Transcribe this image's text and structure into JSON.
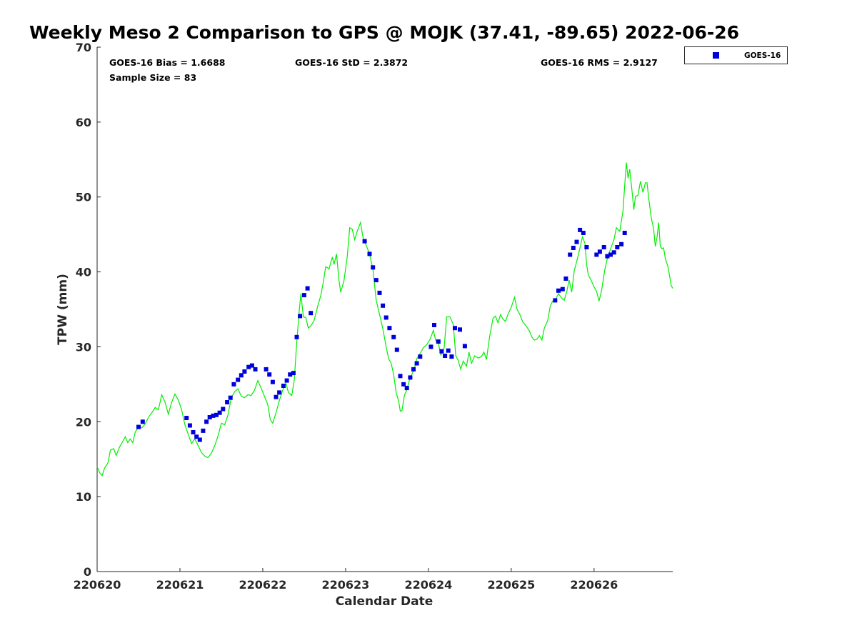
{
  "chart_data": {
    "type": "scatter",
    "title": "Weekly Meso 2 Comparison to GPS @ MOJK (37.41, -89.65) 2022-06-26",
    "xlabel": "Calendar Date",
    "ylabel": "TPW (mm)",
    "xlim": [
      0,
      6.95
    ],
    "ylim": [
      0,
      70
    ],
    "x_units": "days since 220620",
    "x_ticks": [
      0,
      1,
      2,
      3,
      4,
      5,
      6
    ],
    "x_tick_labels": [
      "220620",
      "220621",
      "220622",
      "220623",
      "220624",
      "220625",
      "220626"
    ],
    "y_ticks": [
      0,
      10,
      20,
      30,
      40,
      50,
      60,
      70
    ],
    "y_tick_labels": [
      "0",
      "10",
      "20",
      "30",
      "40",
      "50",
      "60",
      "70"
    ],
    "grid": false,
    "legend_position": "outside top-right",
    "stats": {
      "bias": "GOES-16 Bias = 1.6688",
      "std": "GOES-16 StD = 2.3872",
      "rms": "GOES-16 RMS = 2.9127",
      "sample": "Sample Size = 83"
    },
    "series": [
      {
        "name": "GOES-16",
        "kind": "scatter",
        "marker": "square",
        "color": "#0000dd",
        "points": [
          [
            0.5,
            19.3
          ],
          [
            0.55,
            20.0
          ],
          [
            1.08,
            20.5
          ],
          [
            1.12,
            19.5
          ],
          [
            1.16,
            18.6
          ],
          [
            1.2,
            18.0
          ],
          [
            1.24,
            17.6
          ],
          [
            1.28,
            18.8
          ],
          [
            1.32,
            20.0
          ],
          [
            1.36,
            20.6
          ],
          [
            1.4,
            20.8
          ],
          [
            1.44,
            20.9
          ],
          [
            1.48,
            21.2
          ],
          [
            1.52,
            21.7
          ],
          [
            1.57,
            22.6
          ],
          [
            1.61,
            23.2
          ],
          [
            1.65,
            25.0
          ],
          [
            1.7,
            25.6
          ],
          [
            1.74,
            26.2
          ],
          [
            1.78,
            26.7
          ],
          [
            1.83,
            27.3
          ],
          [
            1.87,
            27.5
          ],
          [
            1.91,
            27.0
          ],
          [
            2.04,
            27.0
          ],
          [
            2.08,
            26.3
          ],
          [
            2.12,
            25.3
          ],
          [
            2.16,
            23.3
          ],
          [
            2.2,
            23.9
          ],
          [
            2.25,
            24.8
          ],
          [
            2.29,
            25.5
          ],
          [
            2.33,
            26.3
          ],
          [
            2.37,
            26.5
          ],
          [
            2.41,
            31.3
          ],
          [
            2.45,
            34.1
          ],
          [
            2.5,
            36.9
          ],
          [
            2.54,
            37.8
          ],
          [
            2.58,
            34.5
          ],
          [
            3.23,
            44.1
          ],
          [
            3.29,
            42.4
          ],
          [
            3.33,
            40.6
          ],
          [
            3.37,
            38.9
          ],
          [
            3.41,
            37.2
          ],
          [
            3.45,
            35.5
          ],
          [
            3.49,
            33.9
          ],
          [
            3.53,
            32.5
          ],
          [
            3.58,
            31.3
          ],
          [
            3.62,
            29.6
          ],
          [
            3.66,
            26.1
          ],
          [
            3.7,
            25.0
          ],
          [
            3.74,
            24.5
          ],
          [
            3.78,
            25.9
          ],
          [
            3.82,
            27.0
          ],
          [
            3.86,
            27.8
          ],
          [
            3.9,
            28.7
          ],
          [
            4.03,
            30.0
          ],
          [
            4.07,
            32.9
          ],
          [
            4.12,
            30.7
          ],
          [
            4.16,
            29.4
          ],
          [
            4.2,
            28.8
          ],
          [
            4.24,
            29.5
          ],
          [
            4.28,
            28.7
          ],
          [
            4.32,
            32.5
          ],
          [
            4.38,
            32.3
          ],
          [
            4.44,
            30.1
          ],
          [
            5.53,
            36.2
          ],
          [
            5.57,
            37.5
          ],
          [
            5.62,
            37.7
          ],
          [
            5.66,
            39.1
          ],
          [
            5.71,
            42.3
          ],
          [
            5.75,
            43.2
          ],
          [
            5.79,
            44.0
          ],
          [
            5.83,
            45.6
          ],
          [
            5.87,
            45.2
          ],
          [
            5.91,
            43.3
          ],
          [
            6.03,
            42.3
          ],
          [
            6.07,
            42.7
          ],
          [
            6.12,
            43.3
          ],
          [
            6.16,
            42.1
          ],
          [
            6.2,
            42.3
          ],
          [
            6.24,
            42.6
          ],
          [
            6.28,
            43.3
          ],
          [
            6.33,
            43.7
          ],
          [
            6.37,
            45.2
          ]
        ]
      },
      {
        "name": "",
        "kind": "line",
        "color": "#00ee00",
        "points": [
          [
            0.0,
            14.0
          ],
          [
            0.03,
            13.2
          ],
          [
            0.06,
            12.8
          ],
          [
            0.09,
            13.8
          ],
          [
            0.13,
            14.5
          ],
          [
            0.16,
            16.2
          ],
          [
            0.2,
            16.4
          ],
          [
            0.23,
            15.5
          ],
          [
            0.27,
            16.6
          ],
          [
            0.31,
            17.4
          ],
          [
            0.34,
            18.0
          ],
          [
            0.37,
            17.2
          ],
          [
            0.4,
            17.7
          ],
          [
            0.43,
            17.2
          ],
          [
            0.46,
            18.6
          ],
          [
            0.5,
            19.3
          ],
          [
            0.54,
            19.2
          ],
          [
            0.58,
            19.7
          ],
          [
            0.62,
            20.6
          ],
          [
            0.66,
            21.2
          ],
          [
            0.7,
            21.9
          ],
          [
            0.74,
            21.6
          ],
          [
            0.78,
            23.6
          ],
          [
            0.82,
            22.6
          ],
          [
            0.86,
            21.0
          ],
          [
            0.9,
            22.6
          ],
          [
            0.94,
            23.7
          ],
          [
            0.98,
            22.9
          ],
          [
            1.02,
            21.6
          ],
          [
            1.06,
            19.6
          ],
          [
            1.1,
            18.3
          ],
          [
            1.14,
            17.1
          ],
          [
            1.18,
            17.7
          ],
          [
            1.22,
            16.8
          ],
          [
            1.26,
            15.9
          ],
          [
            1.3,
            15.4
          ],
          [
            1.34,
            15.2
          ],
          [
            1.38,
            15.8
          ],
          [
            1.42,
            16.8
          ],
          [
            1.46,
            18.1
          ],
          [
            1.5,
            19.8
          ],
          [
            1.54,
            19.6
          ],
          [
            1.58,
            20.9
          ],
          [
            1.62,
            23.2
          ],
          [
            1.66,
            24.0
          ],
          [
            1.7,
            24.4
          ],
          [
            1.74,
            23.4
          ],
          [
            1.78,
            23.2
          ],
          [
            1.82,
            23.6
          ],
          [
            1.86,
            23.5
          ],
          [
            1.9,
            24.2
          ],
          [
            1.94,
            25.5
          ],
          [
            1.98,
            24.5
          ],
          [
            2.02,
            23.4
          ],
          [
            2.06,
            22.3
          ],
          [
            2.09,
            20.3
          ],
          [
            2.12,
            19.8
          ],
          [
            2.16,
            21.2
          ],
          [
            2.2,
            22.8
          ],
          [
            2.24,
            24.2
          ],
          [
            2.28,
            25.1
          ],
          [
            2.31,
            23.9
          ],
          [
            2.35,
            23.5
          ],
          [
            2.38,
            25.5
          ],
          [
            2.41,
            30.6
          ],
          [
            2.44,
            34.8
          ],
          [
            2.46,
            37.1
          ],
          [
            2.49,
            34.0
          ],
          [
            2.52,
            33.9
          ],
          [
            2.55,
            32.5
          ],
          [
            2.58,
            32.8
          ],
          [
            2.62,
            33.5
          ],
          [
            2.66,
            35.3
          ],
          [
            2.7,
            36.8
          ],
          [
            2.73,
            38.6
          ],
          [
            2.76,
            40.7
          ],
          [
            2.8,
            40.4
          ],
          [
            2.84,
            42.0
          ],
          [
            2.86,
            41.0
          ],
          [
            2.89,
            42.4
          ],
          [
            2.92,
            38.9
          ],
          [
            2.94,
            37.3
          ],
          [
            2.98,
            38.8
          ],
          [
            3.02,
            42.0
          ],
          [
            3.05,
            45.9
          ],
          [
            3.08,
            45.7
          ],
          [
            3.11,
            44.3
          ],
          [
            3.14,
            45.4
          ],
          [
            3.18,
            46.6
          ],
          [
            3.21,
            44.6
          ],
          [
            3.25,
            43.5
          ],
          [
            3.29,
            42.4
          ],
          [
            3.33,
            40.3
          ],
          [
            3.37,
            36.2
          ],
          [
            3.41,
            34.3
          ],
          [
            3.45,
            32.4
          ],
          [
            3.49,
            30.0
          ],
          [
            3.52,
            28.4
          ],
          [
            3.55,
            27.8
          ],
          [
            3.58,
            26.3
          ],
          [
            3.61,
            23.9
          ],
          [
            3.64,
            22.8
          ],
          [
            3.66,
            21.4
          ],
          [
            3.68,
            21.5
          ],
          [
            3.71,
            23.5
          ],
          [
            3.74,
            24.3
          ],
          [
            3.77,
            25.5
          ],
          [
            3.8,
            26.3
          ],
          [
            3.83,
            27.1
          ],
          [
            3.86,
            28.4
          ],
          [
            3.9,
            29.1
          ],
          [
            3.94,
            29.9
          ],
          [
            3.98,
            30.3
          ],
          [
            4.02,
            31.0
          ],
          [
            4.06,
            32.2
          ],
          [
            4.09,
            30.8
          ],
          [
            4.12,
            30.5
          ],
          [
            4.15,
            28.9
          ],
          [
            4.19,
            29.8
          ],
          [
            4.22,
            34.0
          ],
          [
            4.26,
            34.0
          ],
          [
            4.3,
            33.0
          ],
          [
            4.33,
            28.8
          ],
          [
            4.36,
            28.2
          ],
          [
            4.39,
            27.0
          ],
          [
            4.42,
            28.1
          ],
          [
            4.46,
            27.4
          ],
          [
            4.49,
            29.3
          ],
          [
            4.52,
            27.8
          ],
          [
            4.56,
            28.8
          ],
          [
            4.6,
            28.5
          ],
          [
            4.64,
            28.7
          ],
          [
            4.67,
            29.3
          ],
          [
            4.7,
            28.3
          ],
          [
            4.74,
            31.4
          ],
          [
            4.78,
            33.8
          ],
          [
            4.81,
            34.1
          ],
          [
            4.84,
            33.2
          ],
          [
            4.87,
            34.3
          ],
          [
            4.9,
            33.7
          ],
          [
            4.93,
            33.4
          ],
          [
            4.96,
            34.3
          ],
          [
            5.0,
            35.3
          ],
          [
            5.04,
            36.6
          ],
          [
            5.07,
            35.0
          ],
          [
            5.1,
            34.4
          ],
          [
            5.14,
            33.3
          ],
          [
            5.18,
            32.8
          ],
          [
            5.22,
            32.1
          ],
          [
            5.25,
            31.3
          ],
          [
            5.28,
            30.9
          ],
          [
            5.31,
            31.0
          ],
          [
            5.34,
            31.5
          ],
          [
            5.37,
            30.9
          ],
          [
            5.4,
            32.5
          ],
          [
            5.44,
            33.5
          ],
          [
            5.47,
            35.4
          ],
          [
            5.5,
            36.1
          ],
          [
            5.53,
            36.2
          ],
          [
            5.57,
            37.1
          ],
          [
            5.61,
            36.5
          ],
          [
            5.64,
            36.2
          ],
          [
            5.67,
            37.4
          ],
          [
            5.7,
            38.9
          ],
          [
            5.73,
            37.3
          ],
          [
            5.76,
            40.1
          ],
          [
            5.8,
            41.8
          ],
          [
            5.83,
            43.2
          ],
          [
            5.86,
            44.7
          ],
          [
            5.89,
            43.8
          ],
          [
            5.91,
            41.0
          ],
          [
            5.93,
            39.6
          ],
          [
            5.96,
            39.0
          ],
          [
            6.0,
            38.0
          ],
          [
            6.03,
            37.4
          ],
          [
            6.06,
            36.1
          ],
          [
            6.09,
            37.5
          ],
          [
            6.13,
            40.3
          ],
          [
            6.16,
            41.8
          ],
          [
            6.2,
            43.1
          ],
          [
            6.24,
            44.3
          ],
          [
            6.27,
            45.9
          ],
          [
            6.31,
            45.4
          ],
          [
            6.35,
            48.2
          ],
          [
            6.37,
            51.5
          ],
          [
            6.39,
            54.6
          ],
          [
            6.41,
            52.5
          ],
          [
            6.43,
            53.7
          ],
          [
            6.46,
            50.6
          ],
          [
            6.48,
            48.3
          ],
          [
            6.5,
            50.1
          ],
          [
            6.53,
            50.2
          ],
          [
            6.56,
            52.1
          ],
          [
            6.59,
            50.6
          ],
          [
            6.62,
            51.9
          ],
          [
            6.64,
            51.9
          ],
          [
            6.66,
            49.8
          ],
          [
            6.69,
            47.3
          ],
          [
            6.72,
            45.7
          ],
          [
            6.74,
            43.4
          ],
          [
            6.76,
            44.6
          ],
          [
            6.78,
            46.6
          ],
          [
            6.8,
            43.4
          ],
          [
            6.82,
            43.1
          ],
          [
            6.84,
            43.2
          ],
          [
            6.86,
            41.8
          ],
          [
            6.89,
            40.8
          ],
          [
            6.91,
            39.6
          ],
          [
            6.93,
            38.2
          ],
          [
            6.95,
            37.8
          ]
        ]
      }
    ]
  }
}
